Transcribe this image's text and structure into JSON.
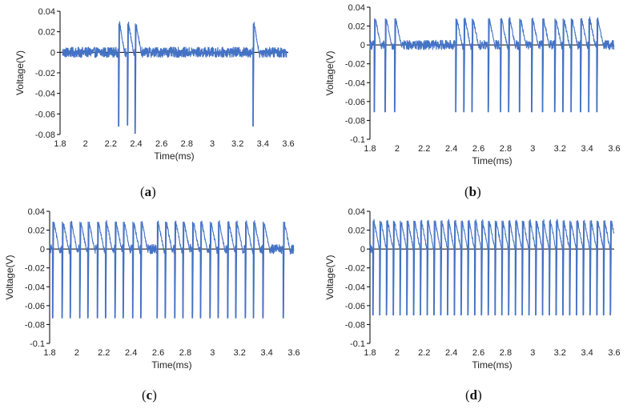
{
  "figure": {
    "signal_color": "#4472C4",
    "axis_color": "#000000"
  },
  "chart_data": [
    {
      "type": "line",
      "panel": "a",
      "caption_letter": "a",
      "xlabel": "Time(ms)",
      "ylabel": "Voltage(V)",
      "xlim": [
        1.8,
        3.6
      ],
      "ylim": [
        -0.08,
        0.04
      ],
      "xticks": [
        "1.8",
        "2",
        "2.2",
        "2.4",
        "2.6",
        "2.8",
        "3",
        "3.2",
        "3.4",
        "3.6"
      ],
      "yticks": [
        "0.04",
        "0.02",
        "0",
        "-0.02",
        "-0.04",
        "-0.06",
        "-0.08"
      ],
      "grid": false,
      "signal": {
        "start": 1.82,
        "end": 3.59,
        "baseline_noise": 0.005,
        "peak": 0.028,
        "trough": -0.072
      },
      "spikes_ms": [
        2.26,
        2.33,
        2.39,
        3.32
      ],
      "spike_troughs_V": [
        -0.072,
        -0.071,
        -0.079,
        -0.072
      ]
    },
    {
      "type": "line",
      "panel": "b",
      "caption_letter": "b",
      "xlabel": "Time(ms)",
      "ylabel": "Voltage(V)",
      "xlim": [
        1.8,
        3.6
      ],
      "ylim": [
        -0.1,
        0.04
      ],
      "xticks": [
        "1.8",
        "2",
        "2.2",
        "2.4",
        "2.6",
        "2.8",
        "3",
        "3.2",
        "3.4",
        "3.6"
      ],
      "yticks": [
        "0.04",
        "0.02",
        "0",
        "-0.02",
        "-0.04",
        "-0.06",
        "-0.08",
        "-0.1"
      ],
      "grid": false,
      "signal": {
        "start": 1.8,
        "end": 3.6,
        "baseline_noise": 0.005,
        "peak": 0.028,
        "trough": -0.071
      },
      "spikes_ms": [
        1.83,
        1.91,
        1.98,
        2.43,
        2.49,
        2.55,
        2.67,
        2.76,
        2.82,
        2.9,
        2.99,
        3.07,
        3.16,
        3.22,
        3.28,
        3.35,
        3.41,
        3.47
      ]
    },
    {
      "type": "line",
      "panel": "c",
      "caption_letter": "c",
      "xlabel": "Time(ms)",
      "ylabel": "Voltage(V)",
      "xlim": [
        1.8,
        3.6
      ],
      "ylim": [
        -0.1,
        0.04
      ],
      "xticks": [
        "1.8",
        "2",
        "2.2",
        "2.4",
        "2.6",
        "2.8",
        "3",
        "3.2",
        "3.4",
        "3.6"
      ],
      "yticks": [
        "0.04",
        "0.02",
        "0",
        "-0.02",
        "-0.04",
        "-0.06",
        "-0.08",
        "-0.1"
      ],
      "grid": false,
      "signal": {
        "start": 1.8,
        "end": 3.6,
        "baseline_noise": 0.005,
        "peak": 0.029,
        "trough": -0.073
      },
      "spikes_ms": [
        1.82,
        1.89,
        1.95,
        2.02,
        2.08,
        2.15,
        2.21,
        2.28,
        2.34,
        2.41,
        2.47,
        2.59,
        2.65,
        2.72,
        2.78,
        2.85,
        2.91,
        2.98,
        3.04,
        3.11,
        3.17,
        3.24,
        3.3,
        3.37,
        3.52
      ]
    },
    {
      "type": "line",
      "panel": "d",
      "caption_letter": "d",
      "xlabel": "Time(ms)",
      "ylabel": "Voltage(V)",
      "xlim": [
        1.8,
        3.6
      ],
      "ylim": [
        -0.1,
        0.04
      ],
      "xticks": [
        "1.8",
        "2",
        "2.2",
        "2.4",
        "2.6",
        "2.8",
        "3",
        "3.2",
        "3.4",
        "3.6"
      ],
      "yticks": [
        "0.04",
        "0.02",
        "0",
        "-0.02",
        "-0.04",
        "-0.06",
        "-0.08",
        "-0.1"
      ],
      "grid": false,
      "signal": {
        "start": 1.8,
        "end": 3.6,
        "baseline_noise": 0.005,
        "peak": 0.03,
        "trough": -0.07
      },
      "spikes_ms": [
        1.82,
        1.87,
        1.92,
        1.97,
        2.02,
        2.07,
        2.12,
        2.17,
        2.22,
        2.27,
        2.32,
        2.37,
        2.42,
        2.47,
        2.52,
        2.57,
        2.62,
        2.67,
        2.72,
        2.77,
        2.82,
        2.87,
        2.92,
        2.97,
        3.02,
        3.07,
        3.12,
        3.17,
        3.22,
        3.27,
        3.32,
        3.37,
        3.42,
        3.47,
        3.52,
        3.57
      ]
    }
  ]
}
